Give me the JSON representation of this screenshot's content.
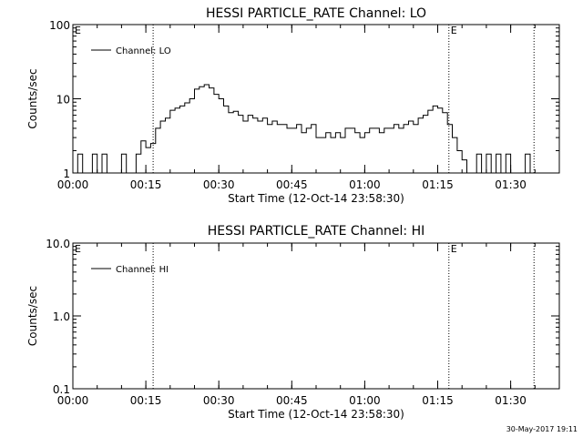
{
  "footer": {
    "timestamp": "30-May-2017 19:11"
  },
  "chart_data": [
    {
      "type": "line",
      "title": "HESSI PARTICLE_RATE Channel: LO",
      "xlabel": "Start Time (12-Oct-14 23:58:30)",
      "ylabel": "Counts/sec",
      "yscale": "log",
      "xlim": [
        0,
        100
      ],
      "ylim": [
        1,
        100
      ],
      "xticks": [
        0,
        15,
        30,
        45,
        60,
        75,
        90
      ],
      "xtick_labels": [
        "00:00",
        "00:15",
        "00:30",
        "00:45",
        "01:00",
        "01:15",
        "01:30"
      ],
      "yticks": [
        1,
        10,
        100
      ],
      "ytick_labels": [
        "1",
        "10",
        "100"
      ],
      "vlines": [
        {
          "x": 16.5,
          "label": ""
        },
        {
          "x": 77.3,
          "label": "E"
        },
        {
          "x": 94.8,
          "label": ""
        }
      ],
      "corner_label": "E",
      "legend": {
        "position": "top-left"
      },
      "series": [
        {
          "name": "Channel: LO",
          "x": [
            0,
            1,
            2,
            3,
            4,
            5,
            6,
            7,
            8,
            9,
            10,
            11,
            12,
            13,
            14,
            15,
            16,
            17,
            18,
            19,
            20,
            21,
            22,
            23,
            24,
            25,
            26,
            27,
            28,
            29,
            30,
            31,
            32,
            33,
            34,
            35,
            36,
            37,
            38,
            39,
            40,
            41,
            42,
            43,
            44,
            45,
            46,
            47,
            48,
            49,
            50,
            51,
            52,
            53,
            54,
            55,
            56,
            57,
            58,
            59,
            60,
            61,
            62,
            63,
            64,
            65,
            66,
            67,
            68,
            69,
            70,
            71,
            72,
            73,
            74,
            75,
            76,
            77,
            78,
            79,
            80,
            81,
            82,
            83,
            84,
            85,
            86,
            87,
            88,
            89,
            90,
            91,
            92,
            93,
            94,
            95
          ],
          "y": [
            0.9,
            1.8,
            0.9,
            0.9,
            1.8,
            0.9,
            1.8,
            0.9,
            0.9,
            0.9,
            1.8,
            0.9,
            0.9,
            1.8,
            2.7,
            2.2,
            2.5,
            4.0,
            5.0,
            5.5,
            7.0,
            7.5,
            8.0,
            8.8,
            10.0,
            13.5,
            14.5,
            15.5,
            14.0,
            11.5,
            10.0,
            8.0,
            6.5,
            6.8,
            6.0,
            5.0,
            6.0,
            5.5,
            5.0,
            5.5,
            4.5,
            5.0,
            4.5,
            4.5,
            4.0,
            4.0,
            4.5,
            3.5,
            4.0,
            4.5,
            3.0,
            3.0,
            3.5,
            3.0,
            3.5,
            3.0,
            4.0,
            4.0,
            3.5,
            3.0,
            3.5,
            4.0,
            4.0,
            3.5,
            4.0,
            4.0,
            4.5,
            4.0,
            4.5,
            5.0,
            4.5,
            5.5,
            6.0,
            7.0,
            8.0,
            7.5,
            6.5,
            4.5,
            3.0,
            2.0,
            1.5,
            0.9,
            0.9,
            1.8,
            0.9,
            1.8,
            0.9,
            1.8,
            0.9,
            1.8,
            0.9,
            0.9,
            0.9,
            1.8,
            0.9,
            0.9
          ]
        }
      ]
    },
    {
      "type": "line",
      "title": "HESSI PARTICLE_RATE Channel: HI",
      "xlabel": "Start Time (12-Oct-14 23:58:30)",
      "ylabel": "Counts/sec",
      "yscale": "log",
      "xlim": [
        0,
        100
      ],
      "ylim": [
        0.1,
        10
      ],
      "xticks": [
        0,
        15,
        30,
        45,
        60,
        75,
        90
      ],
      "xtick_labels": [
        "00:00",
        "00:15",
        "00:30",
        "00:45",
        "01:00",
        "01:15",
        "01:30"
      ],
      "yticks": [
        0.1,
        1,
        10
      ],
      "ytick_labels": [
        "0.1",
        "1.0",
        "10.0"
      ],
      "vlines": [
        {
          "x": 16.5,
          "label": ""
        },
        {
          "x": 77.3,
          "label": "E"
        },
        {
          "x": 94.8,
          "label": ""
        }
      ],
      "corner_label": "E",
      "legend": {
        "position": "top-left"
      },
      "series": [
        {
          "name": "Channel: HI",
          "x": [],
          "y": []
        }
      ]
    }
  ]
}
